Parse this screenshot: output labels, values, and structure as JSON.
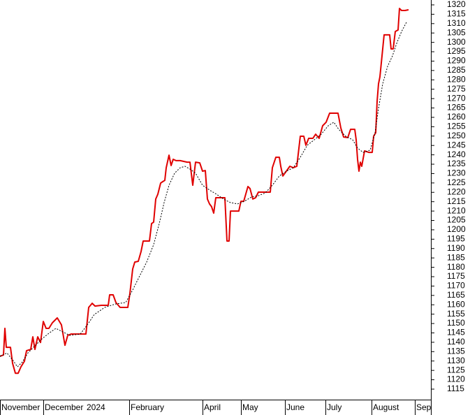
{
  "chart_data": {
    "type": "line",
    "xlim": [
      0,
      617
    ],
    "xticks": [
      {
        "value": 0,
        "label": "November"
      },
      {
        "value": 62,
        "label": "December"
      },
      {
        "value": 122,
        "label": "2024"
      },
      {
        "value": 185,
        "label": "February"
      },
      {
        "value": 290,
        "label": "April"
      },
      {
        "value": 345,
        "label": "May"
      },
      {
        "value": 408,
        "label": "June"
      },
      {
        "value": 466,
        "label": "July"
      },
      {
        "value": 532,
        "label": "August"
      },
      {
        "value": 594,
        "label": "Sep"
      }
    ],
    "ylim": [
      1109.4,
      1322.6
    ],
    "yticks": [
      1115,
      1120,
      1125,
      1130,
      1135,
      1140,
      1145,
      1150,
      1155,
      1160,
      1165,
      1170,
      1175,
      1180,
      1185,
      1190,
      1195,
      1200,
      1205,
      1210,
      1215,
      1220,
      1225,
      1230,
      1235,
      1240,
      1245,
      1250,
      1255,
      1260,
      1265,
      1270,
      1275,
      1280,
      1285,
      1290,
      1295,
      1300,
      1305,
      1310,
      1315,
      1320
    ],
    "series": [
      {
        "color": "#e00000",
        "dash": false,
        "x": [
          0,
          5,
          7,
          9,
          12,
          15,
          18,
          22,
          26,
          30,
          35,
          38,
          44,
          47,
          50,
          54,
          58,
          62,
          66,
          70,
          75,
          82,
          88,
          93,
          97,
          102,
          110,
          118,
          123,
          127,
          132,
          136,
          145,
          155,
          157,
          162,
          166,
          172,
          180,
          183,
          186,
          190,
          193,
          198,
          202,
          205,
          210,
          214,
          217,
          220,
          223,
          226,
          230,
          233,
          236,
          238,
          242,
          245,
          248,
          252,
          258,
          263,
          268,
          272,
          276,
          280,
          286,
          290,
          294,
          297,
          300,
          303,
          306,
          309,
          313,
          318,
          322,
          325,
          328,
          330,
          335,
          342,
          345,
          349,
          355,
          358,
          362,
          366,
          370,
          377,
          387,
          390,
          395,
          400,
          402,
          405,
          410,
          415,
          420,
          425,
          430,
          435,
          438,
          442,
          448,
          452,
          457,
          462,
          467,
          472,
          478,
          484,
          488,
          492,
          498,
          502,
          508,
          510,
          512,
          514,
          516,
          518,
          522,
          528,
          533,
          535,
          538,
          540,
          542,
          544,
          547,
          550,
          553,
          558,
          560,
          563,
          566,
          570,
          572,
          575,
          580,
          585
        ],
        "values": [
          1132.5,
          1133.2,
          1147.4,
          1137.3,
          1137.3,
          1137.3,
          1128.8,
          1123.5,
          1123.5,
          1126.9,
          1129.9,
          1135.5,
          1136.2,
          1142.9,
          1136.2,
          1142.9,
          1139.9,
          1151.1,
          1147.4,
          1147.4,
          1150.4,
          1153.0,
          1149.3,
          1138.4,
          1143.7,
          1144.4,
          1144.4,
          1144.4,
          1144.4,
          1158.6,
          1160.8,
          1159.3,
          1159.7,
          1159.7,
          1165.3,
          1165.3,
          1161.2,
          1158.6,
          1158.6,
          1158.6,
          1166.0,
          1179.1,
          1182.8,
          1183.2,
          1188.4,
          1194.0,
          1194.0,
          1194.0,
          1203.3,
          1204.1,
          1216.4,
          1219.0,
          1224.9,
          1225.7,
          1226.4,
          1233.1,
          1239.8,
          1234.3,
          1237.6,
          1236.9,
          1236.9,
          1236.5,
          1236.1,
          1236.1,
          1223.8,
          1236.1,
          1235.7,
          1231.3,
          1231.6,
          1216.4,
          1213.8,
          1212.3,
          1208.9,
          1217.1,
          1217.1,
          1217.1,
          1217.1,
          1194.0,
          1194.0,
          1210.0,
          1210.0,
          1210.0,
          1215.2,
          1215.2,
          1223.1,
          1222.0,
          1216.4,
          1217.1,
          1220.1,
          1220.1,
          1220.1,
          1233.1,
          1238.7,
          1238.7,
          1233.9,
          1228.7,
          1231.3,
          1233.9,
          1233.1,
          1233.9,
          1249.9,
          1249.9,
          1245.1,
          1248.8,
          1248.8,
          1251.0,
          1248.8,
          1255.5,
          1257.4,
          1262.2,
          1262.2,
          1262.2,
          1254.4,
          1249.5,
          1249.2,
          1253.6,
          1253.6,
          1248.0,
          1237.6,
          1231.3,
          1236.1,
          1233.9,
          1242.1,
          1241.3,
          1241.3,
          1249.9,
          1251.8,
          1268.6,
          1277.9,
          1281.6,
          1292.8,
          1304.0,
          1304.0,
          1304.0,
          1296.5,
          1296.5,
          1305.8,
          1306.6,
          1318.1,
          1317.0,
          1317.0,
          1317.4
        ]
      },
      {
        "color": "#000000",
        "dash": true,
        "x": [
          0,
          10,
          18,
          25,
          32,
          40,
          50,
          60,
          70,
          80,
          90,
          100,
          115,
          125,
          135,
          150,
          165,
          180,
          190,
          200,
          210,
          220,
          228,
          235,
          242,
          250,
          258,
          265,
          272,
          280,
          290,
          300,
          310,
          320,
          330,
          340,
          350,
          360,
          370,
          380,
          390,
          400,
          410,
          420,
          430,
          440,
          450,
          460,
          470,
          478,
          485,
          495,
          505,
          512,
          520,
          530,
          537,
          542,
          548,
          555,
          562,
          568,
          575,
          582
        ],
        "values": [
          1132.5,
          1134.3,
          1130.6,
          1126.9,
          1129.5,
          1134.3,
          1138.1,
          1141.8,
          1144.8,
          1147.4,
          1145.5,
          1143.7,
          1144.4,
          1149.3,
          1154.8,
          1158.6,
          1160.4,
          1161.2,
          1167.9,
          1175.4,
          1182.8,
          1192.1,
          1203.3,
          1214.5,
          1223.8,
          1230.2,
          1233.1,
          1233.9,
          1232.4,
          1230.2,
          1223.8,
          1221.2,
          1219.0,
          1216.4,
          1214.5,
          1213.8,
          1215.2,
          1217.5,
          1218.2,
          1219.7,
          1223.8,
          1228.7,
          1231.3,
          1233.1,
          1238.7,
          1245.1,
          1248.0,
          1251.0,
          1255.5,
          1257.4,
          1253.6,
          1249.9,
          1248.0,
          1243.6,
          1241.3,
          1242.5,
          1251.8,
          1264.8,
          1277.9,
          1287.2,
          1292.8,
          1299.5,
          1305.8,
          1310.7
        ]
      }
    ]
  }
}
